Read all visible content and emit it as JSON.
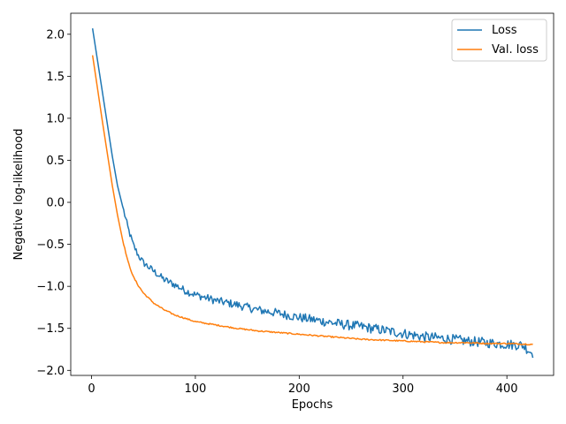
{
  "chart_data": {
    "type": "line",
    "title": "",
    "xlabel": "Epochs",
    "ylabel": "Negative log-likelihood",
    "xlim": [
      -20,
      445
    ],
    "ylim": [
      -2.06,
      2.25
    ],
    "xticks": [
      0,
      100,
      200,
      300,
      400
    ],
    "yticks": [
      -2.0,
      -1.5,
      -1.0,
      -0.5,
      0.0,
      0.5,
      1.0,
      1.5,
      2.0
    ],
    "ytick_labels": [
      "−2.0",
      "−1.5",
      "−1.0",
      "−0.5",
      "0.0",
      "0.5",
      "1.0",
      "1.5",
      "2.0"
    ],
    "grid": false,
    "legend_position": "top-right",
    "series": [
      {
        "name": "Loss",
        "color": "#1f77b4",
        "noise": 0.06,
        "anchors": [
          [
            1,
            2.07
          ],
          [
            5,
            1.75
          ],
          [
            10,
            1.35
          ],
          [
            15,
            0.95
          ],
          [
            20,
            0.55
          ],
          [
            25,
            0.2
          ],
          [
            30,
            -0.05
          ],
          [
            35,
            -0.3
          ],
          [
            40,
            -0.5
          ],
          [
            45,
            -0.63
          ],
          [
            50,
            -0.72
          ],
          [
            60,
            -0.82
          ],
          [
            70,
            -0.92
          ],
          [
            80,
            -0.98
          ],
          [
            90,
            -1.05
          ],
          [
            100,
            -1.1
          ],
          [
            120,
            -1.17
          ],
          [
            140,
            -1.22
          ],
          [
            160,
            -1.28
          ],
          [
            180,
            -1.32
          ],
          [
            200,
            -1.37
          ],
          [
            220,
            -1.41
          ],
          [
            240,
            -1.45
          ],
          [
            260,
            -1.48
          ],
          [
            280,
            -1.52
          ],
          [
            300,
            -1.56
          ],
          [
            320,
            -1.6
          ],
          [
            340,
            -1.62
          ],
          [
            360,
            -1.65
          ],
          [
            380,
            -1.67
          ],
          [
            400,
            -1.69
          ],
          [
            415,
            -1.7
          ],
          [
            425,
            -1.8
          ]
        ]
      },
      {
        "name": "Val. loss",
        "color": "#ff7f0e",
        "noise": 0.008,
        "anchors": [
          [
            1,
            1.75
          ],
          [
            5,
            1.42
          ],
          [
            10,
            1.0
          ],
          [
            15,
            0.6
          ],
          [
            20,
            0.2
          ],
          [
            25,
            -0.15
          ],
          [
            30,
            -0.45
          ],
          [
            35,
            -0.7
          ],
          [
            40,
            -0.88
          ],
          [
            45,
            -0.99
          ],
          [
            50,
            -1.08
          ],
          [
            60,
            -1.2
          ],
          [
            70,
            -1.28
          ],
          [
            80,
            -1.34
          ],
          [
            90,
            -1.38
          ],
          [
            100,
            -1.42
          ],
          [
            120,
            -1.46
          ],
          [
            140,
            -1.5
          ],
          [
            160,
            -1.53
          ],
          [
            180,
            -1.55
          ],
          [
            200,
            -1.57
          ],
          [
            220,
            -1.59
          ],
          [
            240,
            -1.61
          ],
          [
            260,
            -1.63
          ],
          [
            280,
            -1.64
          ],
          [
            300,
            -1.65
          ],
          [
            320,
            -1.66
          ],
          [
            340,
            -1.67
          ],
          [
            360,
            -1.67
          ],
          [
            380,
            -1.68
          ],
          [
            400,
            -1.68
          ],
          [
            425,
            -1.69
          ]
        ]
      }
    ]
  }
}
